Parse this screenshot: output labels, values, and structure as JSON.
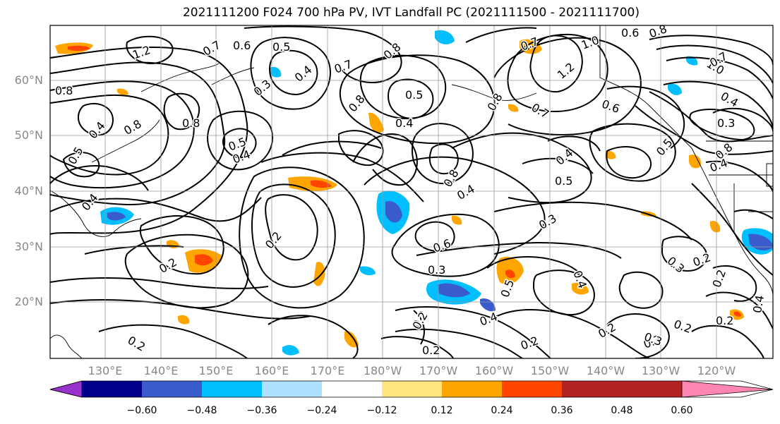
{
  "title": "2021111200 F024 700 hPa PV, IVT Landfall PC (2021111500 - 2021111700)",
  "map": {
    "lon_labels": [
      "130°E",
      "140°E",
      "150°E",
      "160°E",
      "170°E",
      "180°W",
      "170°W",
      "160°W",
      "150°W",
      "140°W",
      "130°W",
      "120°W"
    ],
    "lat_labels": [
      "60°N",
      "50°N",
      "40°N",
      "30°N",
      "20°N"
    ],
    "contour_labels": [
      {
        "text": "1.2"
      },
      {
        "text": "0.7"
      },
      {
        "text": "0.6"
      },
      {
        "text": "0.5"
      },
      {
        "text": "0.8"
      },
      {
        "text": "0.7"
      },
      {
        "text": "0.8"
      },
      {
        "text": "0.3"
      },
      {
        "text": "0.4"
      },
      {
        "text": "0.8"
      },
      {
        "text": "0.8"
      },
      {
        "text": "0.5"
      },
      {
        "text": "0.4"
      },
      {
        "text": "0.5"
      },
      {
        "text": "0.4"
      },
      {
        "text": "0.8"
      },
      {
        "text": "0.5"
      },
      {
        "text": "0.4"
      },
      {
        "text": "0.4"
      },
      {
        "text": "0.8"
      },
      {
        "text": "0.8"
      },
      {
        "text": "0.4"
      },
      {
        "text": "0.5"
      },
      {
        "text": "0.4"
      },
      {
        "text": "0.3"
      },
      {
        "text": "0.2"
      },
      {
        "text": "0.6"
      },
      {
        "text": "0.3"
      },
      {
        "text": "0.2"
      },
      {
        "text": "0.4"
      },
      {
        "text": "0.2"
      },
      {
        "text": "0.2"
      },
      {
        "text": "0.2"
      },
      {
        "text": "0.3"
      },
      {
        "text": "0.2"
      },
      {
        "text": "0.2"
      },
      {
        "text": "0.2"
      },
      {
        "text": "0.3"
      },
      {
        "text": "0.2"
      },
      {
        "text": "0.7"
      },
      {
        "text": "1.0"
      },
      {
        "text": "1.2"
      },
      {
        "text": "0.6"
      },
      {
        "text": "0.7"
      },
      {
        "text": "0.6"
      },
      {
        "text": "0.8"
      },
      {
        "text": "1.0"
      },
      {
        "text": "0.4"
      },
      {
        "text": "0.3"
      },
      {
        "text": "0.5"
      },
      {
        "text": "0.8"
      },
      {
        "text": "0.4"
      },
      {
        "text": "0.3"
      },
      {
        "text": "0.2"
      },
      {
        "text": "0.5"
      },
      {
        "text": "0.4"
      },
      {
        "text": "0.2"
      },
      {
        "text": "0.4"
      },
      {
        "text": "0.2"
      },
      {
        "text": "0.7"
      }
    ]
  },
  "colorbar": {
    "colors": [
      "#9932cc",
      "#00008b",
      "#3a5bcc",
      "#00bfff",
      "#b0e0ff",
      "#ffffff",
      "#ffe680",
      "#ffa500",
      "#ff4500",
      "#b22222",
      "#ff85b3"
    ],
    "tick_labels": [
      "−0.60",
      "−0.48",
      "−0.36",
      "−0.24",
      "−0.12",
      "0.12",
      "0.24",
      "0.36",
      "0.48",
      "0.60"
    ]
  }
}
